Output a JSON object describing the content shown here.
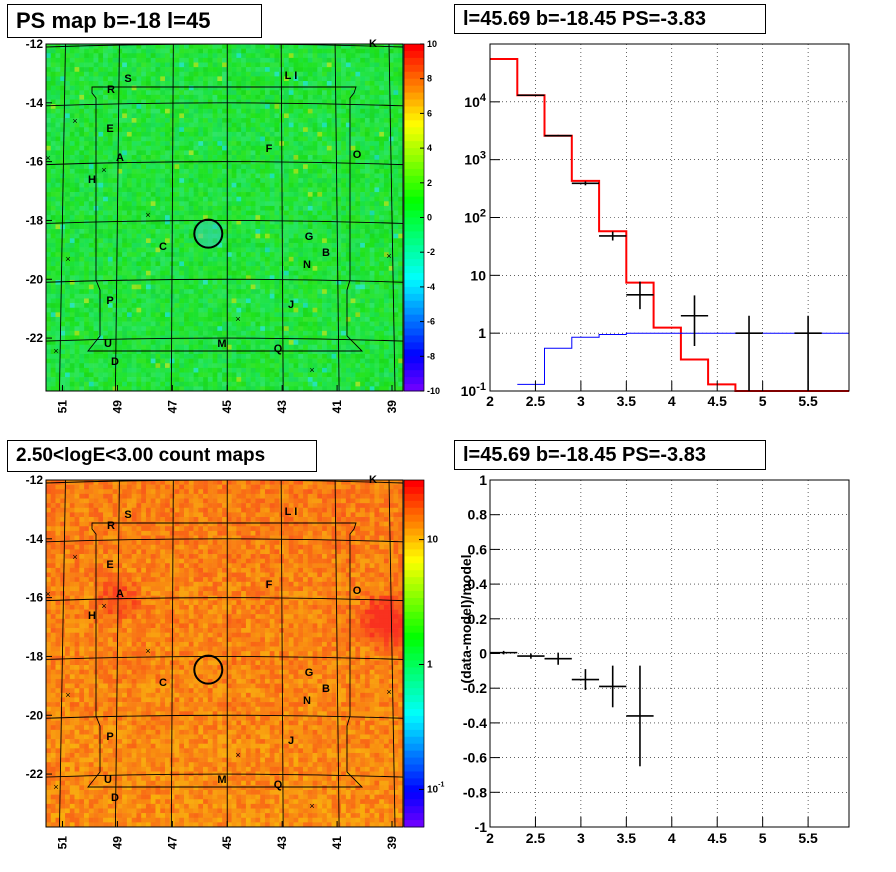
{
  "chart_data": [
    {
      "type": "heatmap",
      "title": "PS map b=-18 l=45",
      "x_ticks": [
        "51",
        "49",
        "47",
        "45",
        "43",
        "41",
        "39"
      ],
      "y_ticks": [
        "-12",
        "-14",
        "-16",
        "-18",
        "-20",
        "-22"
      ],
      "xlim": [
        51.6,
        38.6
      ],
      "ylim": [
        -23.8,
        -12
      ],
      "colorbar": {
        "scale": "linear",
        "range": [
          -10,
          10
        ],
        "ticks": [
          "10",
          "8",
          "6",
          "4",
          "2",
          "0",
          "-2",
          "-4",
          "-6",
          "-8",
          "-10"
        ]
      },
      "labels": [
        "K",
        "S",
        "L I",
        "R",
        "E",
        "A",
        "F",
        "O",
        "H",
        "G",
        "C",
        "B",
        "N",
        "P",
        "J",
        "U",
        "M",
        "Q",
        "D"
      ],
      "marker": {
        "l": 45.69,
        "b": -18.45
      }
    },
    {
      "type": "line",
      "title": "l=45.69 b=-18.45 PS=-3.83",
      "x_ticks": [
        "2",
        "2.5",
        "3",
        "3.5",
        "4",
        "4.5",
        "5",
        "5.5"
      ],
      "y_ticks": [
        "10^4",
        "10^3",
        "10^2",
        "10",
        "1",
        "10^-1"
      ],
      "xlim": [
        2,
        5.95
      ],
      "ylim": [
        0.1,
        100000
      ],
      "y_scale": "log",
      "grid": true,
      "series": [
        {
          "style": "step",
          "color": "#ff0000",
          "edges": [
            2,
            2.3,
            2.6,
            2.9,
            3.2,
            3.5,
            3.8,
            4.1,
            4.4,
            4.7,
            5.0,
            5.95
          ],
          "values": [
            55000,
            13000,
            2600,
            430,
            58,
            7.5,
            1.25,
            0.35,
            0.13,
            0.1,
            0.1
          ]
        },
        {
          "style": "step",
          "color": "#0000ff",
          "edges": [
            2.3,
            2.6,
            2.9,
            3.2,
            3.5,
            3.8,
            4.1,
            4.4,
            4.7,
            5.0,
            5.95
          ],
          "values": [
            0.13,
            0.55,
            0.85,
            0.95,
            1.0,
            1.0,
            1.0,
            1.0,
            1.0,
            1.0
          ]
        },
        {
          "style": "errorbars",
          "color": "#000000",
          "points": [
            {
              "x": 2.45,
              "xerr": 0.15,
              "y": 13000,
              "ylo": 12800,
              "yhi": 13200
            },
            {
              "x": 2.75,
              "xerr": 0.15,
              "y": 2600,
              "ylo": 2520,
              "yhi": 2680
            },
            {
              "x": 3.05,
              "xerr": 0.15,
              "y": 390,
              "ylo": 360,
              "yhi": 420
            },
            {
              "x": 3.35,
              "xerr": 0.15,
              "y": 48,
              "ylo": 40,
              "yhi": 57
            },
            {
              "x": 3.65,
              "xerr": 0.15,
              "y": 4.6,
              "ylo": 2.6,
              "yhi": 7.8
            },
            {
              "x": 4.25,
              "xerr": 0.15,
              "y": 2,
              "ylo": 0.6,
              "yhi": 4.5
            },
            {
              "x": 4.85,
              "xerr": 0.15,
              "y": 1,
              "ylo": 0.1,
              "yhi": 2
            },
            {
              "x": 5.5,
              "xerr": 0.15,
              "y": 1,
              "ylo": 0.1,
              "yhi": 2
            }
          ]
        }
      ]
    },
    {
      "type": "heatmap",
      "title": "2.50<logE<3.00 count maps",
      "x_ticks": [
        "51",
        "49",
        "47",
        "45",
        "43",
        "41",
        "39"
      ],
      "y_ticks": [
        "-12",
        "-14",
        "-16",
        "-18",
        "-20",
        "-22"
      ],
      "xlim": [
        51.6,
        38.6
      ],
      "ylim": [
        -23.8,
        -12
      ],
      "colorbar": {
        "scale": "log",
        "range": [
          0.05,
          30
        ],
        "ticks": [
          "10",
          "1",
          "10^-1"
        ]
      },
      "labels": [
        "K",
        "S",
        "L I",
        "R",
        "E",
        "A",
        "F",
        "O",
        "H",
        "G",
        "C",
        "B",
        "N",
        "P",
        "J",
        "U",
        "M",
        "Q",
        "D"
      ],
      "marker": {
        "l": 45.69,
        "b": -18.45
      }
    },
    {
      "type": "scatter",
      "title": "l=45.69 b=-18.45 PS=-3.83",
      "ylabel": "(data-model)/model",
      "x_ticks": [
        "2",
        "2.5",
        "3",
        "3.5",
        "4",
        "4.5",
        "5",
        "5.5"
      ],
      "y_ticks": [
        "1",
        "0.8",
        "0.6",
        "0.4",
        "0.2",
        "0",
        "-0.2",
        "-0.4",
        "-0.6",
        "-0.8",
        "-1"
      ],
      "xlim": [
        2,
        5.95
      ],
      "ylim": [
        -1,
        1
      ],
      "grid": true,
      "points": [
        {
          "x": 2.15,
          "xerr": 0.15,
          "y": 0.005,
          "yerr": 0.01
        },
        {
          "x": 2.45,
          "xerr": 0.15,
          "y": -0.015,
          "yerr": 0.015
        },
        {
          "x": 2.75,
          "xerr": 0.15,
          "y": -0.03,
          "yerr": 0.035
        },
        {
          "x": 3.05,
          "xerr": 0.15,
          "y": -0.15,
          "yerr": 0.06
        },
        {
          "x": 3.35,
          "xerr": 0.15,
          "y": -0.19,
          "yerr": 0.12
        },
        {
          "x": 3.65,
          "xerr": 0.15,
          "y": -0.36,
          "yerr": 0.29
        }
      ]
    }
  ]
}
